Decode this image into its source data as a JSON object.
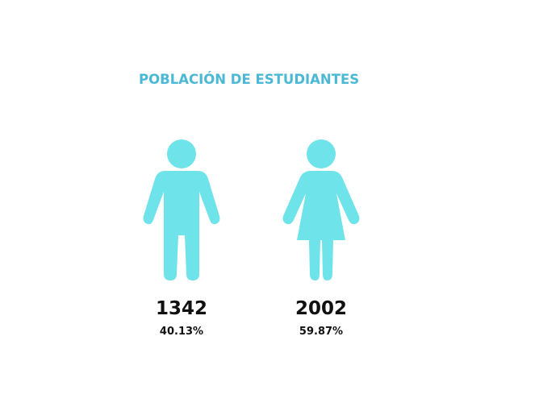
{
  "title": "POBLACIÓN DE ESTUDIANTES",
  "groups": [
    {
      "count": 1342,
      "percent": "40.13%"
    },
    {
      "count": 2002,
      "percent": "59.87%"
    }
  ]
}
